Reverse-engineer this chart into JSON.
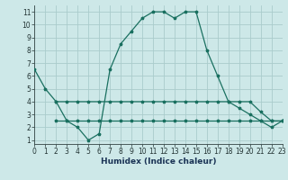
{
  "xlabel": "Humidex (Indice chaleur)",
  "bg_color": "#cde8e8",
  "grid_color": "#aacccc",
  "line_color": "#1a7060",
  "x_main": [
    0,
    1,
    2,
    3,
    4,
    5,
    6,
    7,
    8,
    9,
    10,
    11,
    12,
    13,
    14,
    15,
    16,
    17,
    18,
    19,
    20,
    21,
    22,
    23
  ],
  "y_main": [
    6.5,
    5.0,
    4.0,
    2.5,
    2.0,
    1.0,
    1.5,
    6.5,
    8.5,
    9.5,
    10.5,
    11.0,
    11.0,
    10.5,
    11.0,
    11.0,
    8.0,
    6.0,
    4.0,
    3.5,
    3.0,
    2.5,
    2.0,
    2.5
  ],
  "x_upper": [
    2,
    3,
    4,
    5,
    6,
    7,
    8,
    9,
    10,
    11,
    12,
    13,
    14,
    15,
    16,
    17,
    18,
    19,
    20,
    21,
    22,
    23
  ],
  "y_upper": [
    4.0,
    4.0,
    4.0,
    4.0,
    4.0,
    4.0,
    4.0,
    4.0,
    4.0,
    4.0,
    4.0,
    4.0,
    4.0,
    4.0,
    4.0,
    4.0,
    4.0,
    4.0,
    4.0,
    3.2,
    2.5,
    2.5
  ],
  "x_lower": [
    2,
    3,
    4,
    5,
    6,
    7,
    8,
    9,
    10,
    11,
    12,
    13,
    14,
    15,
    16,
    17,
    18,
    19,
    20,
    21,
    22,
    23
  ],
  "y_lower": [
    2.5,
    2.5,
    2.5,
    2.5,
    2.5,
    2.5,
    2.5,
    2.5,
    2.5,
    2.5,
    2.5,
    2.5,
    2.5,
    2.5,
    2.5,
    2.5,
    2.5,
    2.5,
    2.5,
    2.5,
    2.5,
    2.5
  ],
  "xlim": [
    0,
    23
  ],
  "ylim": [
    0.7,
    11.5
  ],
  "yticks": [
    1,
    2,
    3,
    4,
    5,
    6,
    7,
    8,
    9,
    10,
    11
  ],
  "xticks": [
    0,
    1,
    2,
    3,
    4,
    5,
    6,
    7,
    8,
    9,
    10,
    11,
    12,
    13,
    14,
    15,
    16,
    17,
    18,
    19,
    20,
    21,
    22,
    23
  ],
  "tick_fontsize": 5.5,
  "xlabel_fontsize": 6.5,
  "lw": 0.9,
  "ms": 2.5
}
